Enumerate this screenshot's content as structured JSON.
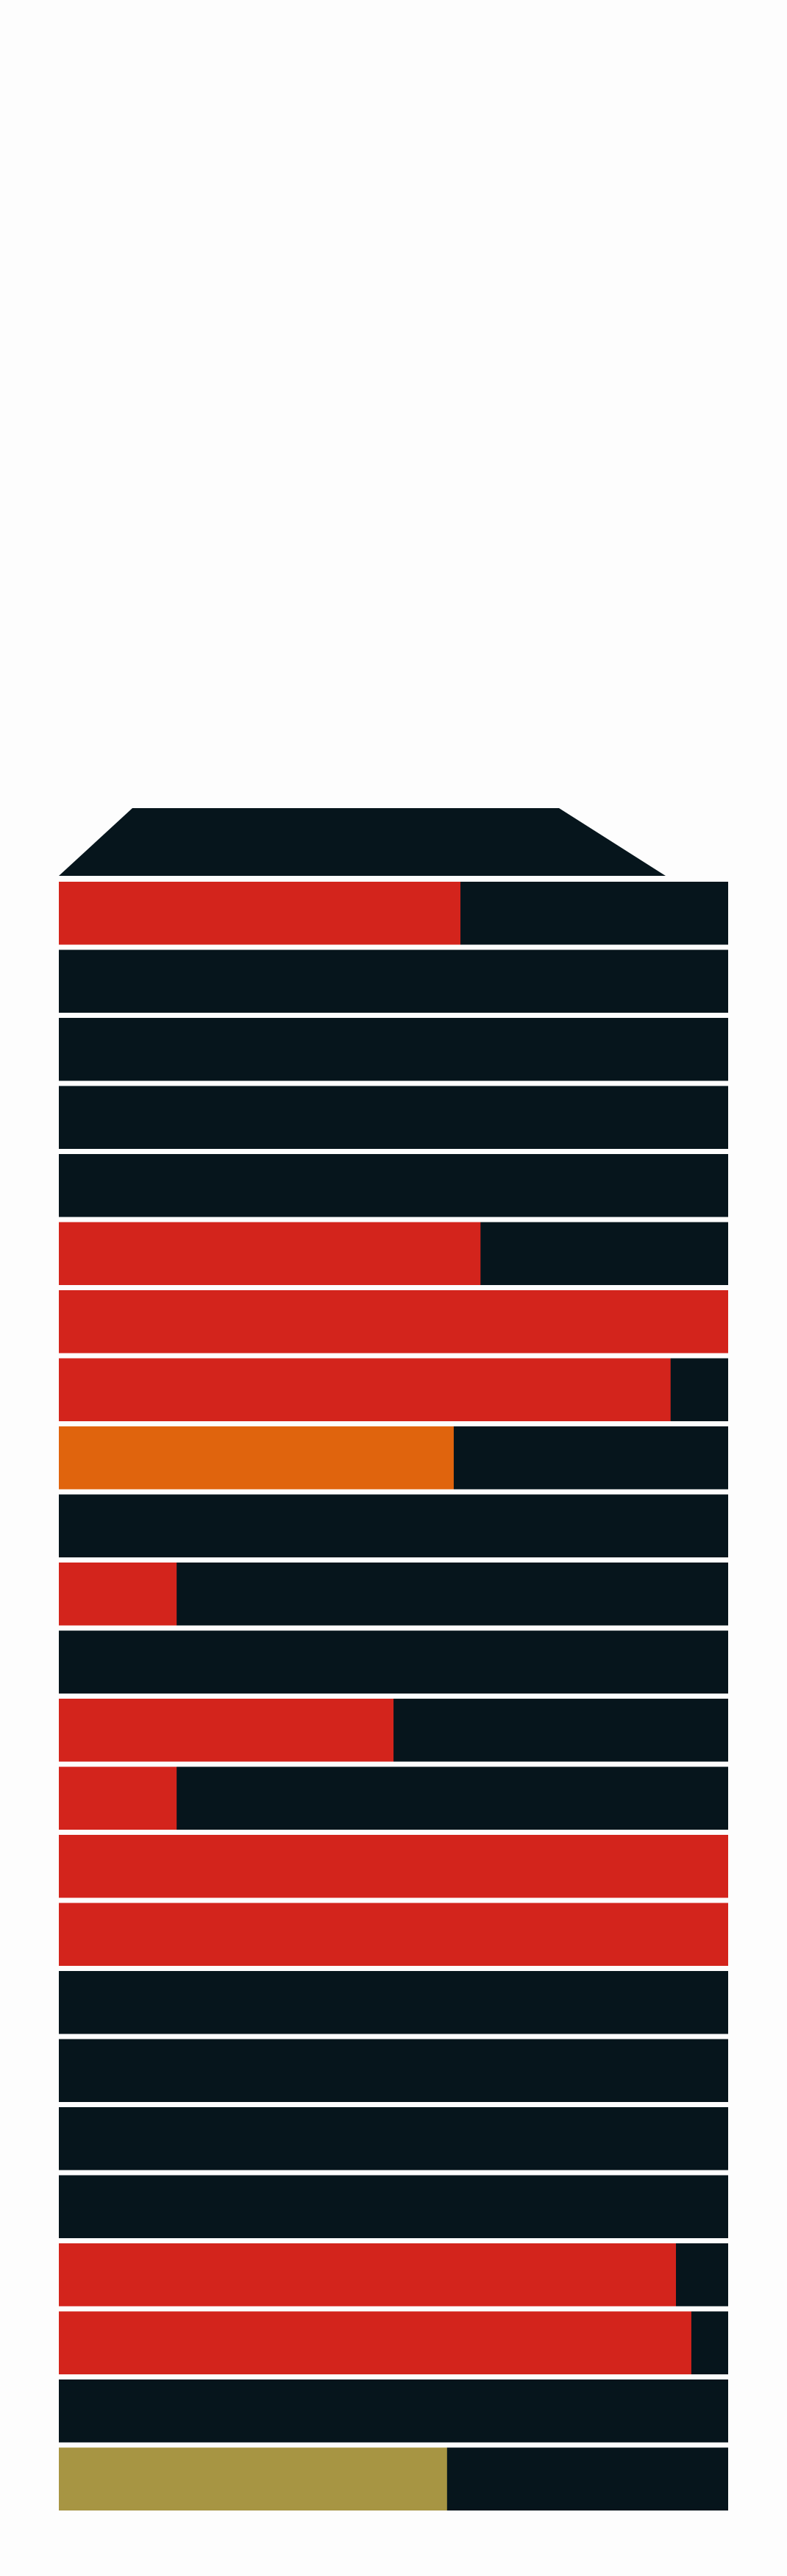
{
  "colors": {
    "background": "#fdfdfd",
    "base": "#06151c",
    "separator": "#e8e8ee",
    "red": "#d3241c",
    "orange": "#e0640d",
    "olive": "#a79543"
  },
  "floors": [
    {
      "fill": 0.6,
      "color": "red"
    },
    {
      "fill": 0,
      "color": "red"
    },
    {
      "fill": 0,
      "color": "red"
    },
    {
      "fill": 0,
      "color": "red"
    },
    {
      "fill": 0,
      "color": "red"
    },
    {
      "fill": 0.63,
      "color": "red"
    },
    {
      "fill": 1.0,
      "color": "red"
    },
    {
      "fill": 0.914,
      "color": "red"
    },
    {
      "fill": 0.59,
      "color": "orange"
    },
    {
      "fill": 0,
      "color": "red"
    },
    {
      "fill": 0.176,
      "color": "red"
    },
    {
      "fill": 0,
      "color": "red"
    },
    {
      "fill": 0.5,
      "color": "red"
    },
    {
      "fill": 0.176,
      "color": "red"
    },
    {
      "fill": 1.0,
      "color": "red"
    },
    {
      "fill": 1.0,
      "color": "red"
    },
    {
      "fill": 0,
      "color": "red"
    },
    {
      "fill": 0,
      "color": "red"
    },
    {
      "fill": 0,
      "color": "red"
    },
    {
      "fill": 0,
      "color": "red"
    },
    {
      "fill": 0.922,
      "color": "red"
    },
    {
      "fill": 0.945,
      "color": "red"
    },
    {
      "fill": 0,
      "color": "red"
    },
    {
      "fill": 0.58,
      "color": "olive"
    }
  ]
}
